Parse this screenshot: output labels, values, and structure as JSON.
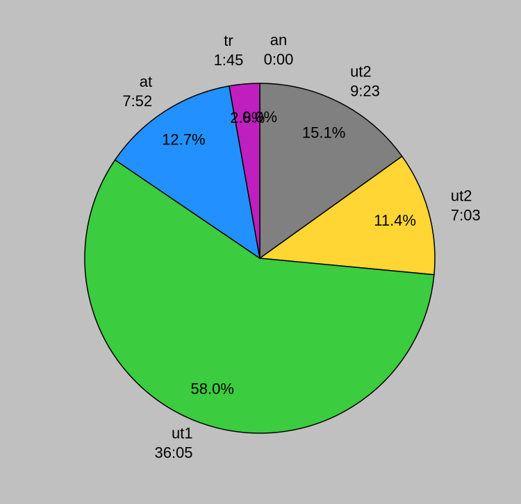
{
  "chart_data": {
    "type": "pie",
    "categories": [
      "an",
      "ut2",
      "ut2",
      "ut1",
      "at",
      "tr"
    ],
    "durations": [
      "0:00",
      "9:23",
      "7:03",
      "36:05",
      "7:52",
      "1:45"
    ],
    "values": [
      0.0,
      15.1,
      11.4,
      58.0,
      12.7,
      2.8
    ],
    "value_labels": [
      "0.0%",
      "15.1%",
      "11.4%",
      "58.0%",
      "12.7%",
      "2.8%"
    ],
    "colors": [
      "#ff3030",
      "#808080",
      "#ffd633",
      "#3ccc3f",
      "#2291ff",
      "#bf1fbf"
    ]
  }
}
